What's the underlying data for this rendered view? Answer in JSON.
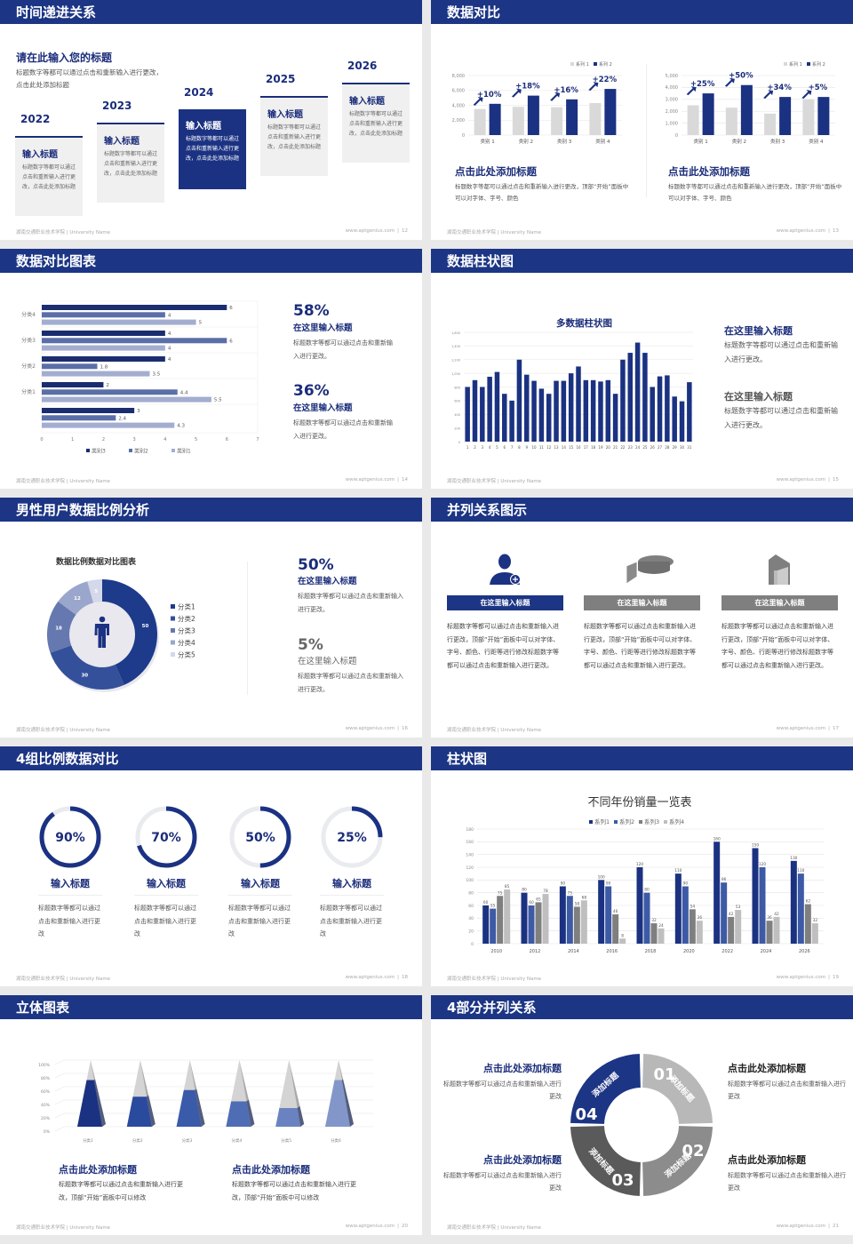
{
  "footer": {
    "left": "湖南交通职业技术学院 | University Name",
    "site": "www.aptgenius.com",
    "sep": "|"
  },
  "colors": {
    "primary": "#1c3584",
    "dark_text": "#1b2d7a",
    "gray": "#7f7f7f",
    "light_gray": "#d9d9d9"
  },
  "slides": [
    {
      "title": "时间递进关系",
      "page": "12",
      "heading": "请在此输入您的标题",
      "desc": "标题数字等都可以通过点击和重新输入进行更改，点击此处添加标题",
      "items": [
        {
          "year": "2022",
          "title": "输入标题",
          "text": "标题数字等都可以通过点击和重新输入进行更改，点击此处添加标题"
        },
        {
          "year": "2023",
          "title": "输入标题",
          "text": "标题数字等都可以通过点击和重新输入进行更改，点击此处添加标题"
        },
        {
          "year": "2024",
          "title": "输入标题",
          "text": "标题数字等都可以通过点击和重新输入进行更改，点击此处添加标题",
          "highlighted": true
        },
        {
          "year": "2025",
          "title": "输入标题",
          "text": "标题数字等都可以通过点击和重新输入进行更改，点击此处添加标题"
        },
        {
          "year": "2026",
          "title": "输入标题",
          "text": "标题数字等都可以通过点击和重新输入进行更改，点击此处添加标题"
        }
      ]
    },
    {
      "title": "数据对比",
      "page": "13",
      "chart_data": [
        {
          "type": "bar",
          "categories": [
            "类别 1",
            "类别 2",
            "类别 3",
            "类别 4"
          ],
          "series": [
            {
              "name": "系列 1",
              "values": [
                3500,
                3800,
                3750,
                4300
              ]
            },
            {
              "name": "系列 2",
              "values": [
                4200,
                5300,
                4800,
                6200
              ]
            }
          ],
          "growth_labels": [
            "+10%",
            "+18%",
            "+16%",
            "+22%"
          ],
          "ylim": [
            0,
            8000
          ],
          "yticks": [
            0,
            2000,
            4000,
            6000,
            8000
          ],
          "ytick_labels": [
            "0",
            "2,000",
            "4,000",
            "6,000",
            "8,000"
          ],
          "grid": true,
          "legend": "top-right"
        },
        {
          "type": "bar",
          "categories": [
            "类别 1",
            "类别 2",
            "类别 3",
            "类别 4"
          ],
          "series": [
            {
              "name": "系列 1",
              "values": [
                2500,
                2300,
                1800,
                3000
              ]
            },
            {
              "name": "系列 2",
              "values": [
                3500,
                4200,
                3200,
                3200
              ]
            }
          ],
          "growth_labels": [
            "+25%",
            "+50%",
            "+34%",
            "+5%"
          ],
          "ylim": [
            0,
            5000
          ],
          "yticks": [
            0,
            1000,
            2000,
            3000,
            4000,
            5000
          ],
          "ytick_labels": [
            "0",
            "1,000",
            "2,000",
            "3,000",
            "4,000",
            "5,000"
          ],
          "grid": true,
          "legend": "top-right"
        }
      ],
      "captions": [
        {
          "title": "点击此处添加标题",
          "text": "标题数字等都可以通过点击和重新输入进行更改，顶部“开始”面板中可以对字体、字号、颜色"
        },
        {
          "title": "点击此处添加标题",
          "text": "标题数字等都可以通过点击和重新输入进行更改，顶部“开始”面板中可以对字体、字号、颜色"
        }
      ]
    },
    {
      "title": "数据对比图表",
      "page": "14",
      "chart_data": {
        "type": "bar",
        "orientation": "horizontal",
        "categories": [
          "分类4",
          "分类3",
          "分类2",
          "分类1",
          ""
        ],
        "series": [
          {
            "name": "类别3",
            "values": [
              6,
              4,
              4,
              2,
              3
            ]
          },
          {
            "name": "类别2",
            "values": [
              4,
              6,
              1.8,
              4.4,
              2.4
            ]
          },
          {
            "name": "类别1",
            "values": [
              5,
              4,
              3.5,
              5.5,
              4.3
            ]
          }
        ],
        "xlim": [
          0,
          7
        ],
        "xticks": [
          "0",
          "1",
          "2",
          "3",
          "4",
          "5",
          "6",
          "7"
        ],
        "grid": true,
        "legend": "bottom"
      },
      "stats": [
        {
          "value": "58%",
          "title": "在这里输入标题",
          "text": "标题数字等都可以通过点击和重新输入进行更改。"
        },
        {
          "value": "36%",
          "title": "在这里输入标题",
          "text": "标题数字等都可以通过点击和重新输入进行更改。"
        }
      ]
    },
    {
      "title": "数据柱状图",
      "page": "15",
      "chart_data": {
        "type": "bar",
        "title": "多数据柱状图",
        "categories": [
          "1",
          "2",
          "3",
          "4",
          "5",
          "6",
          "7",
          "8",
          "9",
          "10",
          "11",
          "12",
          "13",
          "14",
          "15",
          "16",
          "17",
          "18",
          "19",
          "20",
          "21",
          "22",
          "23",
          "24",
          "25",
          "26",
          "27",
          "28",
          "29",
          "30",
          "31"
        ],
        "series": [
          {
            "values": [
              800,
              900,
              800,
              950,
              1020,
              700,
              600,
              1200,
              980,
              890,
              775,
              700,
              890,
              890,
              1000,
              1100,
              900,
              900,
              880,
              900,
              700,
              1200,
              1300,
              1450,
              1300,
              800,
              955,
              970,
              660,
              590,
              870
            ]
          }
        ],
        "ylim": [
          0,
          1600
        ],
        "yticks": [
          0,
          200,
          400,
          600,
          800,
          1000,
          1200,
          1400,
          1600
        ],
        "ytick_labels": [
          "0",
          "200",
          "400",
          "600",
          "800",
          "1,000",
          "1,200",
          "1,400",
          "1,600"
        ],
        "grid": true
      },
      "notes": [
        {
          "title": "在这里输入标题",
          "text": "标题数字等都可以通过点击和重新输入进行更改。"
        },
        {
          "title": "在这里输入标题",
          "text": "标题数字等都可以通过点击和重新输入进行更改。"
        }
      ]
    },
    {
      "title": "男性用户数据比例分析",
      "page": "16",
      "chart_data": {
        "type": "pie",
        "donut": true,
        "title": "数据比例数据对比图表",
        "categories": [
          "分类1",
          "分类2",
          "分类3",
          "分类4",
          "分类5"
        ],
        "values": [
          50,
          30,
          18,
          12,
          5
        ],
        "colors": [
          "#1e3a8a",
          "#34509a",
          "#6578b0",
          "#9aa6cb",
          "#d3d8ea"
        ],
        "legend": "right",
        "center_icon": "male-person-icon"
      },
      "stats": [
        {
          "value": "50%",
          "title": "在这里输入标题",
          "text": "标题数字等都可以通过点击和重新输入进行更改。"
        },
        {
          "value": "5%",
          "title": "在这里输入标题",
          "text": "标题数字等都可以通过点击和重新输入进行更改。"
        }
      ]
    },
    {
      "title": "并列关系图示",
      "page": "17",
      "columns": [
        {
          "icon": "user-add-icon",
          "title": "在这里输入标题",
          "text": "标题数字等都可以通过点击和重新输入进行更改，顶部“开始”面板中可以对字体、字号、颜色、行距等进行修改标题数字等都可以通过点击和重新输入进行更改。",
          "color": "#1c3584"
        },
        {
          "icon": "pie-chart-3d-icon",
          "title": "在这里输入标题",
          "text": "标题数字等都可以通过点击和重新输入进行更改，顶部“开始”面板中可以对字体、字号、颜色、行距等进行修改标题数字等都可以通过点击和重新输入进行更改。",
          "color": "#7f7f7f"
        },
        {
          "icon": "building-icon",
          "title": "在这里输入标题",
          "text": "标题数字等都可以通过点击和重新输入进行更改，顶部“开始”面板中可以对字体、字号、颜色、行距等进行修改标题数字等都可以通过点击和重新输入进行更改。",
          "color": "#7f7f7f"
        }
      ]
    },
    {
      "title": "4组比例数据对比",
      "page": "18",
      "rings": [
        {
          "label": "90%",
          "value": 90,
          "title": "输入标题",
          "text": "标题数字等都可以通过点击和重新输入进行更改"
        },
        {
          "label": "70%",
          "value": 70,
          "title": "输入标题",
          "text": "标题数字等都可以通过点击和重新输入进行更改"
        },
        {
          "label": "50%",
          "value": 50,
          "title": "输入标题",
          "text": "标题数字等都可以通过点击和重新输入进行更改"
        },
        {
          "label": "25%",
          "value": 25,
          "title": "输入标题",
          "text": "标题数字等都可以通过点击和重新输入进行更改"
        }
      ]
    },
    {
      "title": "柱状图",
      "page": "19",
      "chart_data": {
        "type": "bar",
        "title": "不同年份销量一览表",
        "categories": [
          "2010",
          "2012",
          "2014",
          "2016",
          "2018",
          "2020",
          "2022",
          "2024",
          "2026"
        ],
        "series": [
          {
            "name": "系列1",
            "values": [
              60,
              80,
              90,
              100,
              120,
              110,
              160,
              150,
              130
            ]
          },
          {
            "name": "系列2",
            "values": [
              55,
              60,
              75,
              90,
              80,
              90,
              96,
              120,
              110
            ]
          },
          {
            "name": "系列3",
            "values": [
              75,
              65,
              58,
              46,
              32,
              54,
              42,
              36,
              62
            ]
          },
          {
            "name": "系列4",
            "values": [
              85,
              78,
              68,
              8,
              24,
              36,
              53,
              42,
              32
            ]
          }
        ],
        "ylim": [
          0,
          180
        ],
        "yticks": [
          0,
          20,
          40,
          60,
          80,
          100,
          120,
          140,
          160,
          180
        ],
        "ytick_labels": [
          "0",
          "20",
          "40",
          "60",
          "80",
          "100",
          "120",
          "140",
          "160",
          "180"
        ],
        "grid": true,
        "legend": "top",
        "data_labels": true
      }
    },
    {
      "title": "立体图表",
      "page": "20",
      "chart_data": {
        "type": "bar",
        "style": "3d-pyramid",
        "categories": [
          "分类1",
          "分类2",
          "分类3",
          "分类4",
          "分类5",
          "分类6"
        ],
        "values": [
          70,
          45,
          55,
          38,
          28,
          70
        ],
        "ylim": [
          0,
          100
        ],
        "ytick_labels": [
          "0%",
          "20%",
          "40%",
          "60%",
          "80%",
          "100%"
        ],
        "grid": true
      },
      "captions": [
        {
          "title": "点击此处添加标题",
          "text": "标题数字等都可以通过点击和重新输入进行更改，顶部“开始”面板中可以修改"
        },
        {
          "title": "点击此处添加标题",
          "text": "标题数字等都可以通过点击和重新输入进行更改，顶部“开始”面板中可以修改"
        }
      ]
    },
    {
      "title": "4部分并列关系",
      "page": "21",
      "segments": [
        {
          "num": "01",
          "label": "添加标题",
          "color": "#b8b8b8"
        },
        {
          "num": "02",
          "label": "添加标题",
          "color": "#8c8c8c"
        },
        {
          "num": "03",
          "label": "添加标题",
          "color": "#5a5a5a"
        },
        {
          "num": "04",
          "label": "添加标题",
          "color": "#1c3584"
        }
      ],
      "items": [
        {
          "title": "点击此处添加标题",
          "text": "标题数字等都可以通过点击和重新输入进行更改"
        },
        {
          "title": "点击此处添加标题",
          "text": "标题数字等都可以通过点击和重新输入进行更改"
        },
        {
          "title": "点击此处添加标题",
          "text": "标题数字等都可以通过点击和重新输入进行更改"
        },
        {
          "title": "点击此处添加标题",
          "text": "标题数字等都可以通过点击和重新输入进行更改"
        }
      ]
    }
  ]
}
